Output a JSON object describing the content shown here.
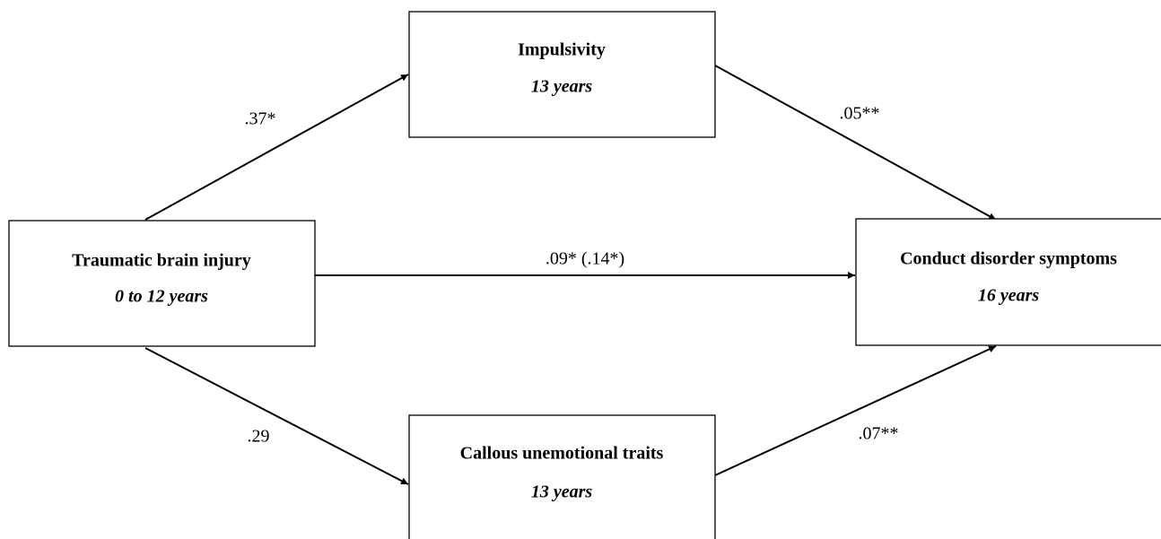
{
  "nodes": [
    {
      "label": "Traumatic brain injury",
      "sublabel": "0 to 12 years"
    },
    {
      "label": "Impulsivity",
      "sublabel": "13 years"
    },
    {
      "label": "Callous unemotional traits",
      "sublabel": "13 years"
    },
    {
      "label": "Conduct disorder symptoms",
      "sublabel": "16 years"
    }
  ],
  "edges": [
    {
      "label": ".37*"
    },
    {
      "label": ".05**"
    },
    {
      "label": ".09* (.14*)"
    },
    {
      "label": ".29"
    },
    {
      "label": ".07**"
    }
  ]
}
